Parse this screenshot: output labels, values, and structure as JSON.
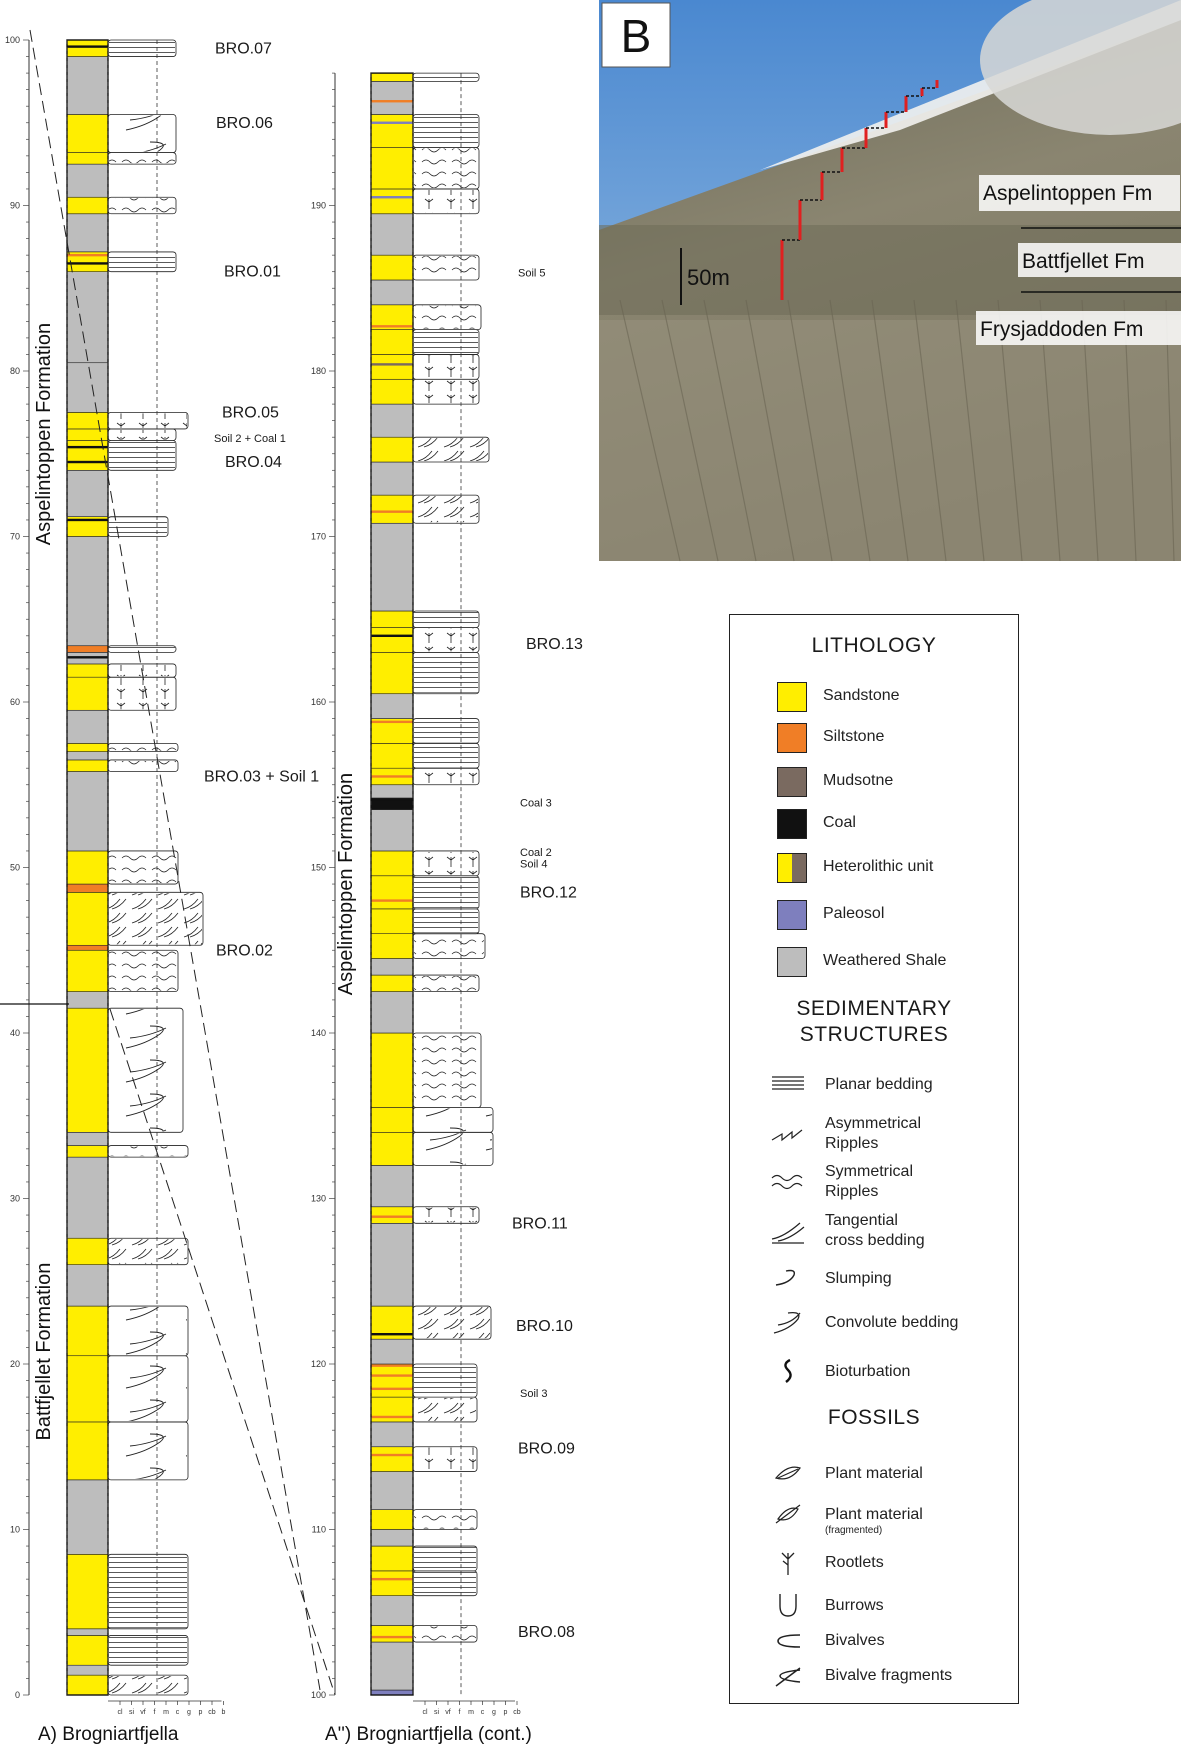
{
  "columnA": {
    "caption": "A) Brogniartfjella",
    "height_axis": {
      "min": 0,
      "max": 100,
      "major_ticks": [
        0,
        10,
        20,
        30,
        40,
        50,
        60,
        70,
        80,
        90,
        100
      ]
    },
    "formations": [
      {
        "name": "Battfjellet Formation",
        "from": 0,
        "to": 41.5
      },
      {
        "name": "Aspelintoppen Formation",
        "from": 41.5,
        "to": 100
      }
    ],
    "grain_size_ticks": [
      "cl",
      "si",
      "vf",
      "f",
      "m",
      "c",
      "g",
      "p",
      "cb",
      "b"
    ],
    "samples": [
      {
        "label": "BRO.07",
        "height": 99.5
      },
      {
        "label": "BRO.06",
        "height": 95
      },
      {
        "label": "BRO.01",
        "height": 86
      },
      {
        "label": "BRO.05",
        "height": 77.5
      },
      {
        "label": "Soil 2 + Coal 1",
        "height": 76
      },
      {
        "label": "BRO.04",
        "height": 74.5
      },
      {
        "label": "BRO.03 + Soil 1",
        "height": 55.5
      },
      {
        "label": "BRO.02",
        "height": 45
      }
    ]
  },
  "columnA2": {
    "caption": "A'') Brogniartfjella (cont.)",
    "height_axis": {
      "min": 100,
      "max": 198,
      "major_ticks": [
        100,
        110,
        120,
        130,
        140,
        150,
        160,
        170,
        180,
        190
      ]
    },
    "formations": [
      {
        "name": "Aspelintoppen Formation",
        "from": 100,
        "to": 198
      }
    ],
    "grain_size_ticks": [
      "cl",
      "si",
      "vf",
      "f",
      "m",
      "c",
      "g",
      "p",
      "cb"
    ],
    "samples": [
      {
        "label": "Soil 5",
        "height": 186
      },
      {
        "label": "BRO.13",
        "height": 163.5
      },
      {
        "label": "Coal 3",
        "height": 154
      },
      {
        "label": "Coal 2",
        "height": 151
      },
      {
        "label": "Soil 4",
        "height": 150.3
      },
      {
        "label": "BRO.12",
        "height": 148.5
      },
      {
        "label": "BRO.11",
        "height": 128.5
      },
      {
        "label": "BRO.10",
        "height": 122.3
      },
      {
        "label": "Soil 3",
        "height": 118.3
      },
      {
        "label": "BRO.09",
        "height": 114.9
      },
      {
        "label": "BRO.08",
        "height": 103.8
      }
    ]
  },
  "photo": {
    "panel_label": "B",
    "scale_label": "50m",
    "formation_labels": [
      "Aspelintoppen Fm",
      "Battfjellet Fm",
      "Frysjaddoden Fm"
    ]
  },
  "legend": {
    "lithology_heading": "LITHOLOGY",
    "lithology": [
      {
        "label": "Sandstone",
        "color": "#ffee00"
      },
      {
        "label": "Siltstone",
        "color": "#f07e26"
      },
      {
        "label": "Mudsotne",
        "color": "#7a6a60"
      },
      {
        "label": "Coal",
        "color": "#111111"
      },
      {
        "label": "Heterolithic unit",
        "color": "#ffee00",
        "color2": "#7a6a60"
      },
      {
        "label": "Paleosol",
        "color": "#7e7fbe"
      },
      {
        "label": "Weathered Shale",
        "color": "#bdbdbd"
      }
    ],
    "structures_heading_1": "SEDIMENTARY",
    "structures_heading_2": "STRUCTURES",
    "structures": [
      {
        "label": "Planar bedding",
        "icon": "planar-bedding-icon"
      },
      {
        "label": "Asymmetrical",
        "label2": "Ripples",
        "icon": "asymmetrical-ripples-icon"
      },
      {
        "label": "Symmetrical",
        "label2": "Ripples",
        "icon": "symmetrical-ripples-icon"
      },
      {
        "label": "Tangential",
        "label2": "cross bedding",
        "icon": "tangential-cross-bedding-icon"
      },
      {
        "label": "Slumping",
        "icon": "slumping-icon"
      },
      {
        "label": "Convolute bedding",
        "icon": "convolute-bedding-icon"
      },
      {
        "label": "Bioturbation",
        "icon": "bioturbation-icon"
      }
    ],
    "fossils_heading": "FOSSILS",
    "fossils": [
      {
        "label": "Plant material",
        "icon": "plant-material-icon"
      },
      {
        "label": "Plant material",
        "sub": "(fragmented)",
        "icon": "plant-fragment-icon"
      },
      {
        "label": "Rootlets",
        "icon": "rootlets-icon"
      },
      {
        "label": "Burrows",
        "icon": "burrows-icon"
      },
      {
        "label": "Bivalves",
        "icon": "bivalves-icon"
      },
      {
        "label": "Bivalve fragments",
        "icon": "bivalve-fragments-icon"
      }
    ]
  }
}
